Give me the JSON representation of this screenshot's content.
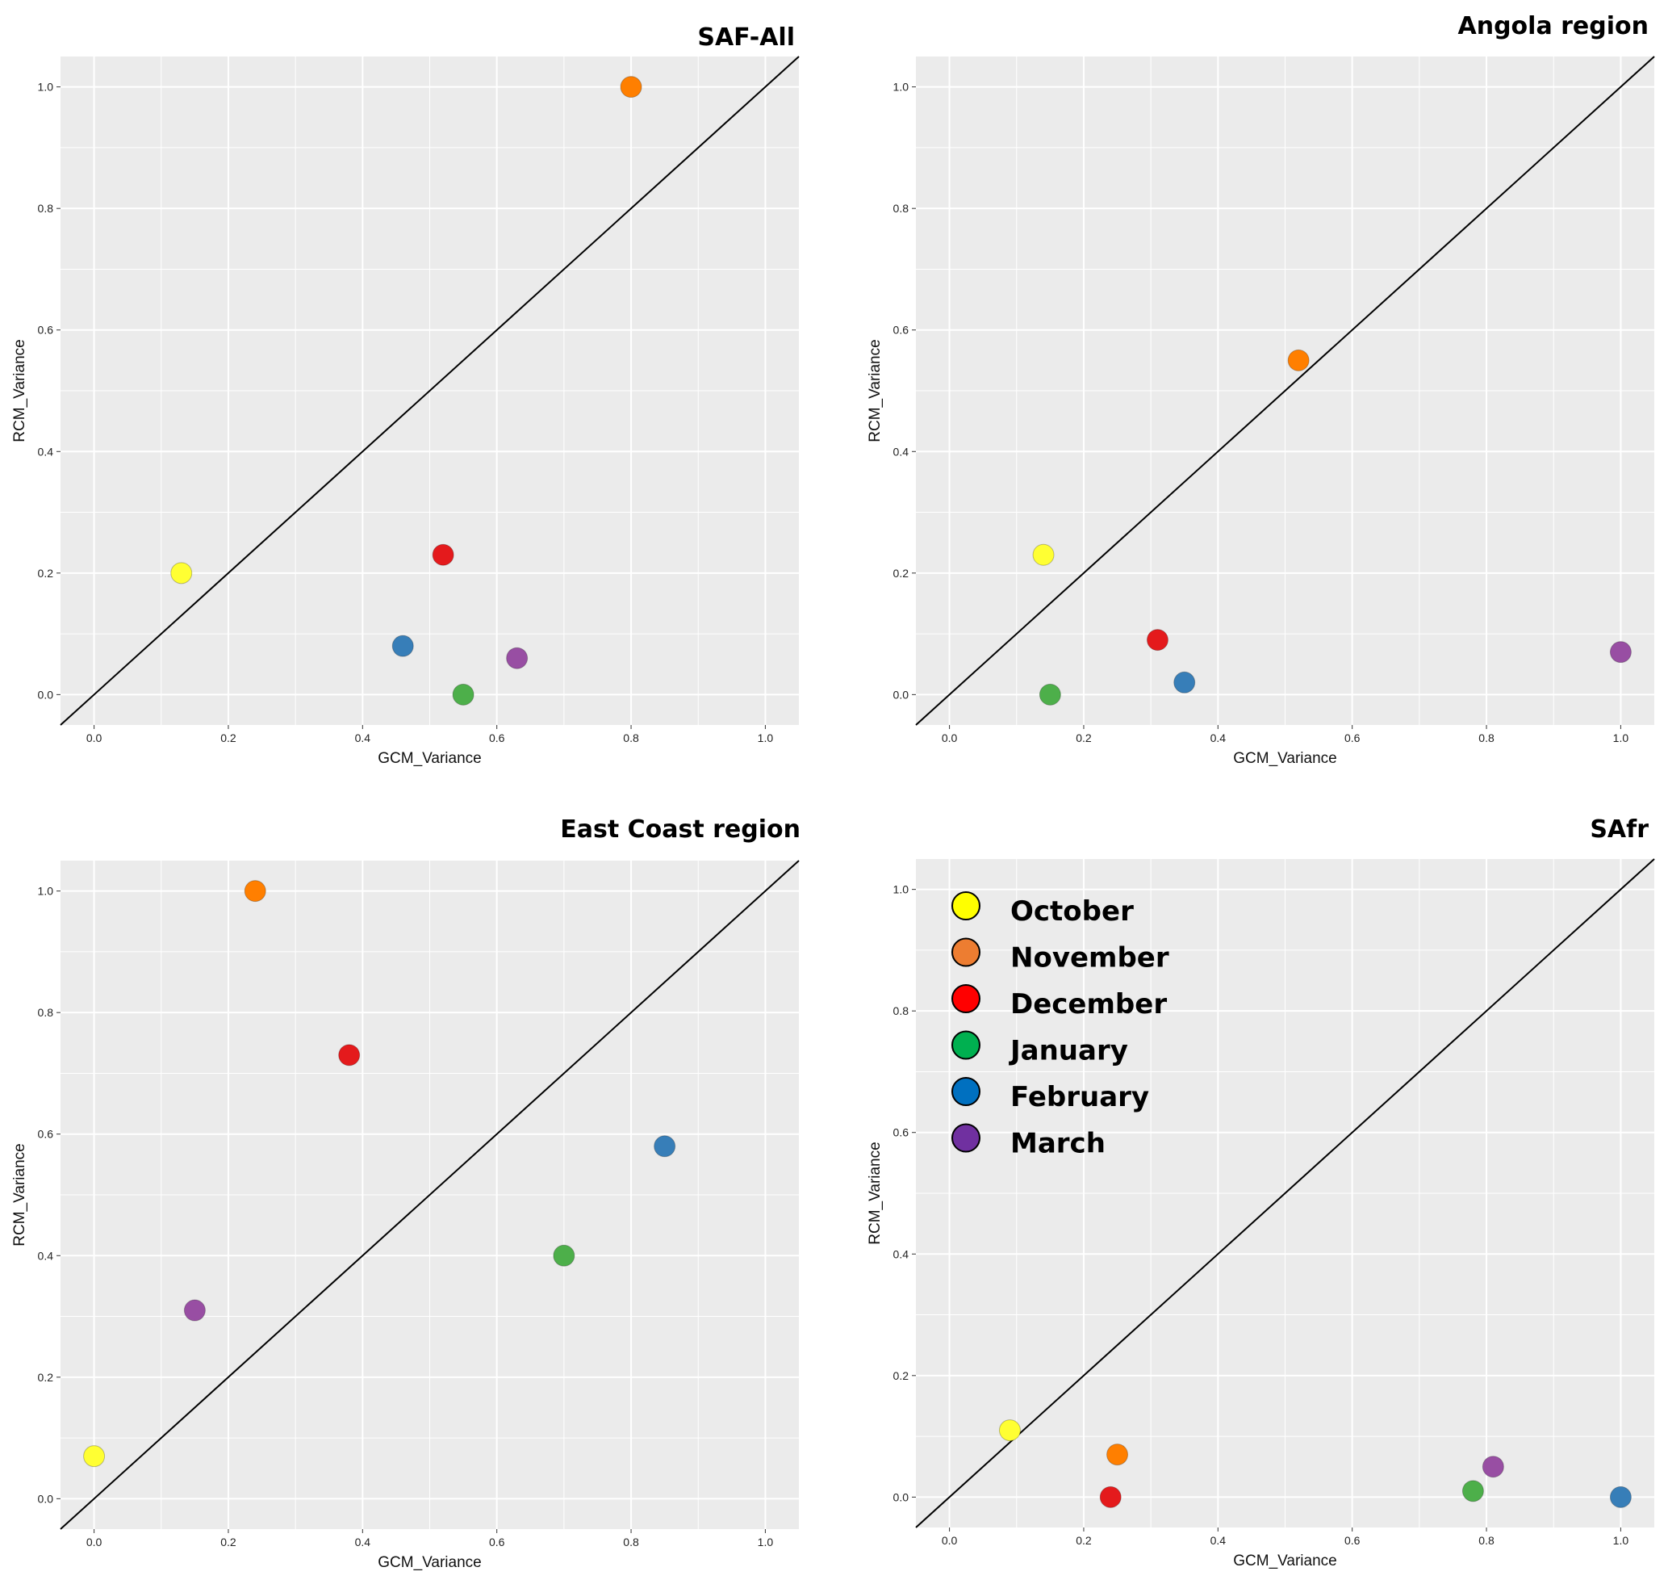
{
  "colors": {
    "October": "#ffff33",
    "November": "#ff7f00",
    "December": "#e41a1c",
    "January": "#4daf4a",
    "February": "#377eb8",
    "March": "#984ea3",
    "panel_bg": "#ebebeb",
    "grid": "#ffffff",
    "identity_line": "#000000"
  },
  "legend": {
    "items": [
      {
        "label": "October",
        "color": "#ffff00"
      },
      {
        "label": "November",
        "color": "#ed7d31"
      },
      {
        "label": "December",
        "color": "#ff0000"
      },
      {
        "label": "January",
        "color": "#00b050"
      },
      {
        "label": "February",
        "color": "#0070c0"
      },
      {
        "label": "March",
        "color": "#7030a0"
      }
    ]
  },
  "chart_data": [
    {
      "type": "scatter",
      "title": "SAF-All",
      "xlabel": "GCM_Variance",
      "ylabel": "RCM_Variance",
      "xlim": [
        -0.05,
        1.05
      ],
      "ylim": [
        -0.05,
        1.05
      ],
      "xticks": [
        "0.0",
        "0.2",
        "0.4",
        "0.6",
        "0.8",
        "1.0"
      ],
      "yticks": [
        "0.0",
        "0.2",
        "0.4",
        "0.6",
        "0.8",
        "1.0"
      ],
      "identity_line": true,
      "points": [
        {
          "month": "October",
          "x": 0.13,
          "y": 0.2
        },
        {
          "month": "November",
          "x": 0.8,
          "y": 1.0
        },
        {
          "month": "December",
          "x": 0.52,
          "y": 0.23
        },
        {
          "month": "January",
          "x": 0.55,
          "y": 0.0
        },
        {
          "month": "February",
          "x": 0.46,
          "y": 0.08
        },
        {
          "month": "March",
          "x": 0.63,
          "y": 0.06
        }
      ]
    },
    {
      "type": "scatter",
      "title": "Angola region",
      "xlabel": "GCM_Variance",
      "ylabel": "RCM_Variance",
      "xlim": [
        -0.05,
        1.05
      ],
      "ylim": [
        -0.05,
        1.05
      ],
      "xticks": [
        "0.0",
        "0.2",
        "0.4",
        "0.6",
        "0.8",
        "1.0"
      ],
      "yticks": [
        "0.0",
        "0.2",
        "0.4",
        "0.6",
        "0.8",
        "1.0"
      ],
      "identity_line": true,
      "points": [
        {
          "month": "October",
          "x": 0.14,
          "y": 0.23
        },
        {
          "month": "November",
          "x": 0.52,
          "y": 0.55
        },
        {
          "month": "December",
          "x": 0.31,
          "y": 0.09
        },
        {
          "month": "January",
          "x": 0.15,
          "y": 0.0
        },
        {
          "month": "February",
          "x": 0.35,
          "y": 0.02
        },
        {
          "month": "March",
          "x": 1.0,
          "y": 0.07
        }
      ]
    },
    {
      "type": "scatter",
      "title": "East Coast region",
      "xlabel": "GCM_Variance",
      "ylabel": "RCM_Variance",
      "xlim": [
        -0.05,
        1.05
      ],
      "ylim": [
        -0.05,
        1.05
      ],
      "xticks": [
        "0.0",
        "0.2",
        "0.4",
        "0.6",
        "0.8",
        "1.0"
      ],
      "yticks": [
        "0.0",
        "0.2",
        "0.4",
        "0.6",
        "0.8",
        "1.0"
      ],
      "identity_line": true,
      "points": [
        {
          "month": "October",
          "x": 0.0,
          "y": 0.07
        },
        {
          "month": "November",
          "x": 0.24,
          "y": 1.0
        },
        {
          "month": "December",
          "x": 0.38,
          "y": 0.73
        },
        {
          "month": "January",
          "x": 0.7,
          "y": 0.4
        },
        {
          "month": "February",
          "x": 0.85,
          "y": 0.58
        },
        {
          "month": "March",
          "x": 0.15,
          "y": 0.31
        }
      ]
    },
    {
      "type": "scatter",
      "title": "SAfr",
      "xlabel": "GCM_Variance",
      "ylabel": "RCM_Variance",
      "xlim": [
        -0.05,
        1.05
      ],
      "ylim": [
        -0.05,
        1.05
      ],
      "xticks": [
        "0.0",
        "0.2",
        "0.4",
        "0.6",
        "0.8",
        "1.0"
      ],
      "yticks": [
        "0.0",
        "0.2",
        "0.4",
        "0.6",
        "0.8",
        "1.0"
      ],
      "identity_line": true,
      "points": [
        {
          "month": "October",
          "x": 0.09,
          "y": 0.11
        },
        {
          "month": "November",
          "x": 0.25,
          "y": 0.07
        },
        {
          "month": "December",
          "x": 0.24,
          "y": 0.0
        },
        {
          "month": "January",
          "x": 0.78,
          "y": 0.01
        },
        {
          "month": "February",
          "x": 1.0,
          "y": 0.0
        },
        {
          "month": "March",
          "x": 0.81,
          "y": 0.05
        }
      ]
    }
  ]
}
